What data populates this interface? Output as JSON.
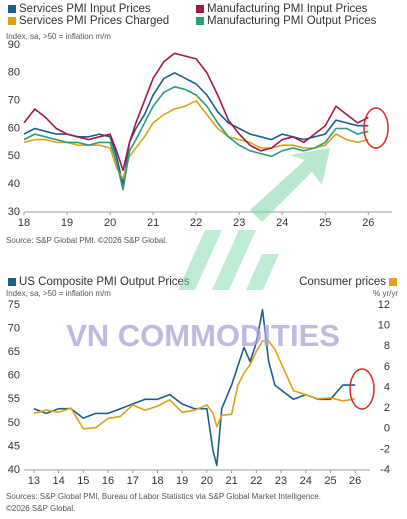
{
  "watermark": "VN COMMODITIES",
  "chart_data": [
    {
      "type": "line",
      "subtitle": "Index, sa, >50 = inflation m/m",
      "source": [
        "Source: S&P Global PMI. ©2026 S&P Global."
      ],
      "x": [
        18,
        18.25,
        18.5,
        18.75,
        19,
        19.25,
        19.5,
        19.75,
        20,
        20.15,
        20.3,
        20.45,
        20.6,
        20.8,
        21,
        21.25,
        21.5,
        21.75,
        22,
        22.25,
        22.5,
        22.75,
        23,
        23.25,
        23.5,
        23.75,
        24,
        24.25,
        24.5,
        24.75,
        25,
        25.25,
        25.5,
        25.75,
        26
      ],
      "series": [
        {
          "name": "Services PMI Input Prices",
          "color": "#1b5f8c",
          "values": [
            58,
            60,
            59,
            58,
            58,
            57,
            57,
            58,
            57,
            50,
            40,
            55,
            60,
            65,
            72,
            78,
            80,
            78,
            76,
            72,
            66,
            62,
            60,
            58,
            57,
            56,
            58,
            57,
            56,
            57,
            58,
            63,
            62,
            61,
            61
          ]
        },
        {
          "name": "Services PMI Prices Charged",
          "color": "#dba21a",
          "values": [
            55,
            56,
            56,
            55,
            55,
            54,
            54,
            54,
            53,
            46,
            42,
            50,
            53,
            57,
            62,
            65,
            67,
            68,
            70,
            65,
            60,
            57,
            56,
            55,
            53,
            53,
            54,
            54,
            53,
            53,
            54,
            58,
            56,
            55,
            56
          ]
        },
        {
          "name": "Manufacturing PMI Input Prices",
          "color": "#a3174a",
          "values": [
            62,
            67,
            64,
            60,
            58,
            57,
            56,
            57,
            58,
            52,
            45,
            55,
            62,
            70,
            78,
            84,
            87,
            86,
            85,
            80,
            72,
            63,
            58,
            54,
            52,
            53,
            56,
            57,
            55,
            58,
            61,
            68,
            65,
            62,
            64
          ]
        },
        {
          "name": "Manufacturing PMI Output Prices",
          "color": "#2a9d78",
          "values": [
            56,
            58,
            57,
            56,
            55,
            55,
            54,
            55,
            55,
            48,
            38,
            52,
            56,
            62,
            68,
            73,
            75,
            74,
            72,
            68,
            62,
            57,
            54,
            52,
            51,
            50,
            52,
            53,
            52,
            53,
            55,
            60,
            60,
            58,
            59
          ]
        }
      ],
      "xlim": [
        18,
        26.55
      ],
      "xticks": [
        18,
        19,
        20,
        21,
        22,
        23,
        24,
        25,
        26
      ],
      "ylim": [
        30,
        90
      ],
      "yticks": [
        30,
        40,
        50,
        60,
        70,
        80,
        90
      ],
      "grid": false
    },
    {
      "type": "line",
      "subtitle": "Index, sa, >50 = inflation m/m",
      "y2_label": "% yr/yr",
      "source": [
        "Sources: S&P Global PMI, Bureau of Labor Statistics via S&P Global Market Intelligence.",
        "©2026 S&P Global."
      ],
      "x": [
        13,
        13.5,
        14,
        14.5,
        15,
        15.5,
        16,
        16.5,
        17,
        17.5,
        18,
        18.5,
        19,
        19.5,
        20,
        20.25,
        20.4,
        20.6,
        21,
        21.25,
        21.5,
        21.75,
        22,
        22.25,
        22.5,
        22.75,
        23,
        23.5,
        24,
        24.5,
        25,
        25.5,
        26
      ],
      "series": [
        {
          "name": "US Composite PMI Output Prices",
          "color": "#1b5f8c",
          "values": [
            53,
            52,
            53,
            53,
            51,
            52,
            52,
            53,
            54,
            55,
            55,
            56,
            54,
            53,
            53,
            44,
            41,
            53,
            58,
            62,
            66,
            63,
            67,
            74,
            63,
            58,
            57,
            55,
            56,
            55,
            55,
            58,
            58
          ]
        },
        {
          "name": "Consumer prices",
          "color": "#dba21a",
          "axis": "y2",
          "values": [
            1.5,
            1.8,
            1.6,
            2.0,
            0,
            0.1,
            1.0,
            1.2,
            2.3,
            1.8,
            2.2,
            2.8,
            1.6,
            1.8,
            2.3,
            1.5,
            0.2,
            1.3,
            1.4,
            4.2,
            5.4,
            6.2,
            7.5,
            8.5,
            8.5,
            7.7,
            6.4,
            3.7,
            3.3,
            2.9,
            3.0,
            2.7,
            2.9
          ]
        }
      ],
      "xlim": [
        12.6,
        26.6
      ],
      "xticks": [
        13,
        14,
        15,
        16,
        17,
        18,
        19,
        20,
        21,
        22,
        23,
        24,
        25,
        26
      ],
      "ylim": [
        40,
        75
      ],
      "yticks": [
        40,
        45,
        50,
        55,
        60,
        65,
        70,
        75
      ],
      "y2lim": [
        -4,
        12
      ],
      "y2ticks": [
        -4,
        -2,
        0,
        2,
        4,
        6,
        8,
        10,
        12
      ],
      "grid": false
    }
  ]
}
